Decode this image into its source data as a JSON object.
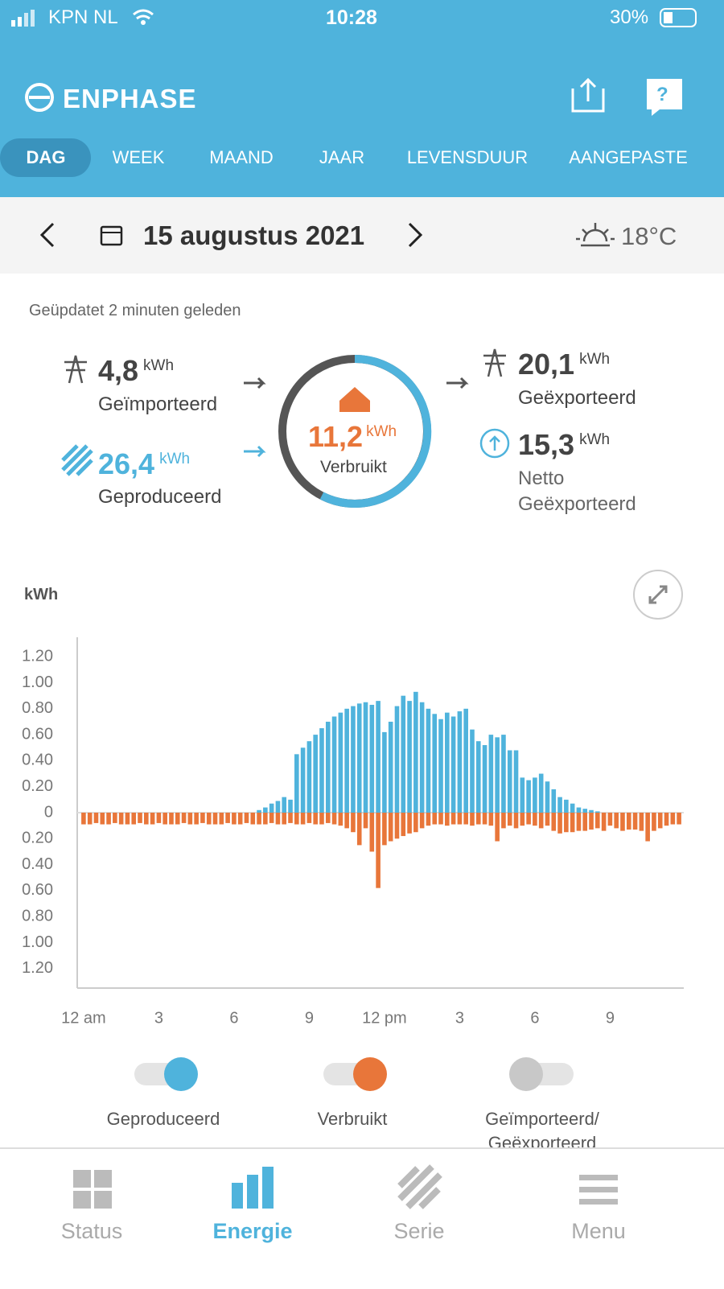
{
  "status_bar": {
    "carrier": "KPN NL",
    "time": "10:28",
    "battery": "30%"
  },
  "header": {
    "brand": "ENPHASE",
    "help": "?"
  },
  "tabs": [
    "DAG",
    "WEEK",
    "MAAND",
    "JAAR",
    "LEVENSDUUR",
    "AANGEPASTE"
  ],
  "date_bar": {
    "date": "15 augustus 2021",
    "temperature": "18°C"
  },
  "summary": {
    "updated": "Geüpdatet 2 minuten geleden",
    "imported": {
      "value": "4,8",
      "unit": "kWh",
      "label": "Geïmporteerd"
    },
    "produced": {
      "value": "26,4",
      "unit": "kWh",
      "label": "Geproduceerd"
    },
    "consumed": {
      "value": "11,2",
      "unit": "kWh",
      "label": "Verbruikt"
    },
    "exported": {
      "value": "20,1",
      "unit": "kWh",
      "label": "Geëxporteerd"
    },
    "net_exported": {
      "value": "15,3",
      "unit": "kWh",
      "label": [
        "Netto",
        "Geëxporteerd"
      ]
    }
  },
  "chart_data": {
    "type": "bar",
    "y_label": "kWh",
    "categories": [
      "12 am",
      null,
      null,
      null,
      null,
      null,
      null,
      null,
      null,
      null,
      null,
      null,
      "3",
      null,
      null,
      null,
      null,
      null,
      null,
      null,
      null,
      null,
      null,
      null,
      "6",
      null,
      null,
      null,
      null,
      null,
      null,
      null,
      null,
      null,
      null,
      null,
      "9",
      null,
      null,
      null,
      null,
      null,
      null,
      null,
      null,
      null,
      null,
      null,
      "12 pm",
      null,
      null,
      null,
      null,
      null,
      null,
      null,
      null,
      null,
      null,
      null,
      "3",
      null,
      null,
      null,
      null,
      null,
      null,
      null,
      null,
      null,
      null,
      null,
      "6",
      null,
      null,
      null,
      null,
      null,
      null,
      null,
      null,
      null,
      null,
      null,
      "9",
      null,
      null,
      null,
      null,
      null,
      null,
      null,
      null,
      null,
      null,
      null
    ],
    "series": [
      {
        "name": "Geproduceerd",
        "color": "#4fb3dc",
        "values": [
          0,
          0,
          0,
          0,
          0,
          0,
          0,
          0,
          0,
          0,
          0,
          0,
          0,
          0,
          0,
          0,
          0,
          0,
          0,
          0,
          0,
          0,
          0,
          0,
          0,
          0,
          0,
          0,
          0.02,
          0.04,
          0.07,
          0.09,
          0.12,
          0.1,
          0.45,
          0.5,
          0.55,
          0.6,
          0.65,
          0.7,
          0.74,
          0.77,
          0.8,
          0.82,
          0.84,
          0.85,
          0.83,
          0.86,
          0.62,
          0.7,
          0.82,
          0.9,
          0.86,
          0.93,
          0.85,
          0.8,
          0.76,
          0.72,
          0.77,
          0.74,
          0.78,
          0.8,
          0.64,
          0.55,
          0.52,
          0.6,
          0.58,
          0.6,
          0.48,
          0.48,
          0.27,
          0.25,
          0.27,
          0.3,
          0.24,
          0.18,
          0.12,
          0.1,
          0.07,
          0.04,
          0.03,
          0.02,
          0.01,
          0,
          0,
          0,
          0,
          0,
          0,
          0,
          0,
          0,
          0,
          0,
          0,
          0
        ]
      },
      {
        "name": "Verbruikt",
        "color": "#e8763a",
        "values": [
          -0.09,
          -0.09,
          -0.08,
          -0.09,
          -0.09,
          -0.08,
          -0.09,
          -0.09,
          -0.09,
          -0.08,
          -0.09,
          -0.09,
          -0.08,
          -0.09,
          -0.09,
          -0.09,
          -0.08,
          -0.09,
          -0.09,
          -0.08,
          -0.09,
          -0.09,
          -0.09,
          -0.08,
          -0.09,
          -0.09,
          -0.08,
          -0.09,
          -0.09,
          -0.09,
          -0.08,
          -0.09,
          -0.09,
          -0.08,
          -0.09,
          -0.09,
          -0.08,
          -0.09,
          -0.09,
          -0.08,
          -0.09,
          -0.1,
          -0.12,
          -0.15,
          -0.25,
          -0.12,
          -0.3,
          -0.58,
          -0.25,
          -0.22,
          -0.2,
          -0.18,
          -0.16,
          -0.15,
          -0.12,
          -0.1,
          -0.09,
          -0.09,
          -0.1,
          -0.09,
          -0.09,
          -0.09,
          -0.1,
          -0.09,
          -0.09,
          -0.1,
          -0.22,
          -0.12,
          -0.1,
          -0.12,
          -0.1,
          -0.09,
          -0.1,
          -0.12,
          -0.1,
          -0.14,
          -0.16,
          -0.15,
          -0.15,
          -0.14,
          -0.14,
          -0.13,
          -0.12,
          -0.14,
          -0.1,
          -0.12,
          -0.14,
          -0.13,
          -0.13,
          -0.14,
          -0.22,
          -0.14,
          -0.12,
          -0.1,
          -0.09,
          -0.09
        ]
      }
    ],
    "ylim": [
      -1.35,
      1.35
    ],
    "yticks": [
      {
        "value": 1.2,
        "label": "1.20"
      },
      {
        "value": 1.0,
        "label": "1.00"
      },
      {
        "value": 0.8,
        "label": "0.80"
      },
      {
        "value": 0.6,
        "label": "0.60"
      },
      {
        "value": 0.4,
        "label": "0.40"
      },
      {
        "value": 0.2,
        "label": "0.20"
      },
      0,
      {
        "value": -0.2,
        "label": "0.20"
      },
      {
        "value": -0.4,
        "label": "0.40"
      },
      {
        "value": -0.6,
        "label": "0.60"
      },
      {
        "value": -0.8,
        "label": "0.80"
      },
      {
        "value": -1.0,
        "label": "1.00"
      },
      {
        "value": -1.2,
        "label": "1.20"
      }
    ],
    "grid": false
  },
  "extra_toggle": [
    "Geïmporteerd/",
    "Geëxporteerd"
  ],
  "nav": [
    "Status",
    "Energie",
    "Serie",
    "Menu"
  ]
}
